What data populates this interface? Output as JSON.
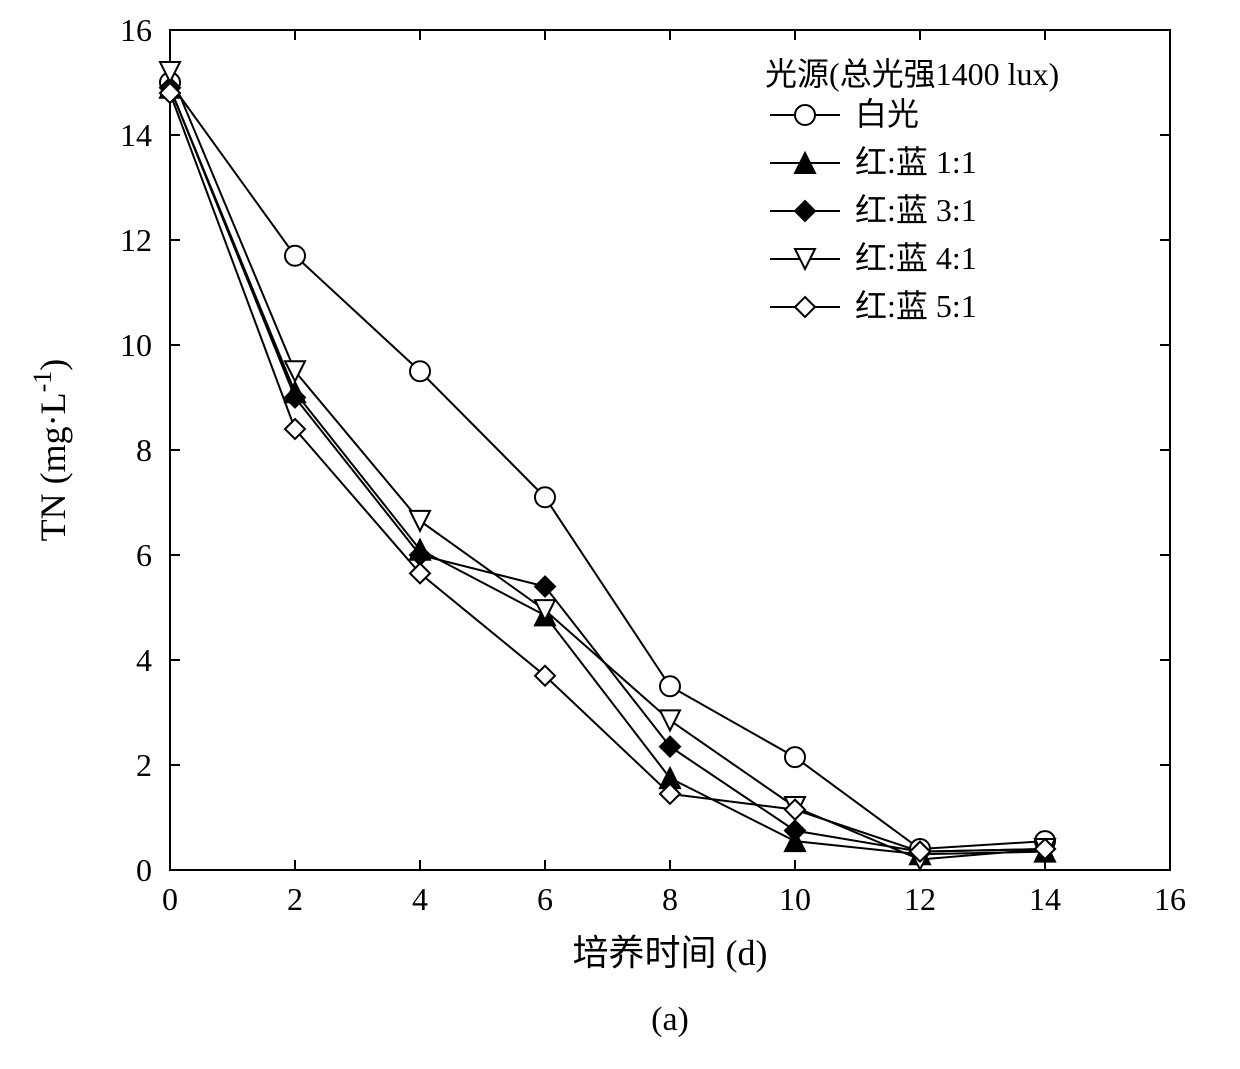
{
  "chart": {
    "type": "line",
    "caption": "(a)",
    "xlabel": "培养时间 (d)",
    "ylabel": "TN (mg·L⁻¹)",
    "xlim": [
      0,
      16
    ],
    "ylim": [
      0,
      16
    ],
    "xtick_step": 2,
    "ytick_step": 2,
    "x_ticks": [
      0,
      2,
      4,
      6,
      8,
      10,
      12,
      14,
      16
    ],
    "y_ticks": [
      0,
      2,
      4,
      6,
      8,
      10,
      12,
      14,
      16
    ],
    "background_color": "#ffffff",
    "axis_color": "#000000",
    "line_color": "#000000",
    "line_width": 2,
    "marker_size": 10,
    "tick_fontsize": 32,
    "label_fontsize": 36,
    "legend_fontsize": 32,
    "legend": {
      "title": "光源(总光强1400 lux)",
      "position": "top-right",
      "items": [
        {
          "label": "白光",
          "marker": "circle",
          "fill": "#ffffff",
          "stroke": "#000000"
        },
        {
          "label": "红:蓝 1:1",
          "marker": "triangle-up",
          "fill": "#000000",
          "stroke": "#000000"
        },
        {
          "label": "红:蓝 3:1",
          "marker": "diamond",
          "fill": "#000000",
          "stroke": "#000000"
        },
        {
          "label": "红:蓝 4:1",
          "marker": "triangle-down",
          "fill": "#ffffff",
          "stroke": "#000000"
        },
        {
          "label": "红:蓝 5:1",
          "marker": "diamond",
          "fill": "#ffffff",
          "stroke": "#000000"
        }
      ]
    },
    "series": [
      {
        "name": "白光",
        "marker": "circle",
        "fill": "#ffffff",
        "stroke": "#000000",
        "x": [
          0,
          2,
          4,
          6,
          8,
          10,
          12,
          14
        ],
        "y": [
          15.0,
          11.7,
          9.5,
          7.1,
          3.5,
          2.15,
          0.4,
          0.55
        ]
      },
      {
        "name": "红:蓝 1:1",
        "marker": "triangle-up",
        "fill": "#000000",
        "stroke": "#000000",
        "x": [
          0,
          2,
          4,
          6,
          8,
          10,
          12,
          14
        ],
        "y": [
          14.9,
          9.1,
          6.1,
          4.85,
          1.75,
          0.55,
          0.3,
          0.35
        ]
      },
      {
        "name": "红:蓝 3:1",
        "marker": "diamond",
        "fill": "#000000",
        "stroke": "#000000",
        "x": [
          0,
          2,
          4,
          6,
          8,
          10,
          12,
          14
        ],
        "y": [
          14.9,
          9.0,
          6.0,
          5.4,
          2.35,
          0.75,
          0.35,
          0.4
        ]
      },
      {
        "name": "红:蓝 4:1",
        "marker": "triangle-down",
        "fill": "#ffffff",
        "stroke": "#000000",
        "x": [
          0,
          2,
          4,
          6,
          8,
          10,
          12,
          14
        ],
        "y": [
          15.2,
          9.5,
          6.65,
          4.95,
          2.85,
          1.2,
          0.2,
          0.4
        ]
      },
      {
        "name": "红:蓝 5:1",
        "marker": "diamond",
        "fill": "#ffffff",
        "stroke": "#000000",
        "x": [
          0,
          2,
          4,
          6,
          8,
          10,
          12,
          14
        ],
        "y": [
          14.8,
          8.4,
          5.65,
          3.7,
          1.45,
          1.15,
          0.35,
          0.4
        ]
      }
    ]
  }
}
